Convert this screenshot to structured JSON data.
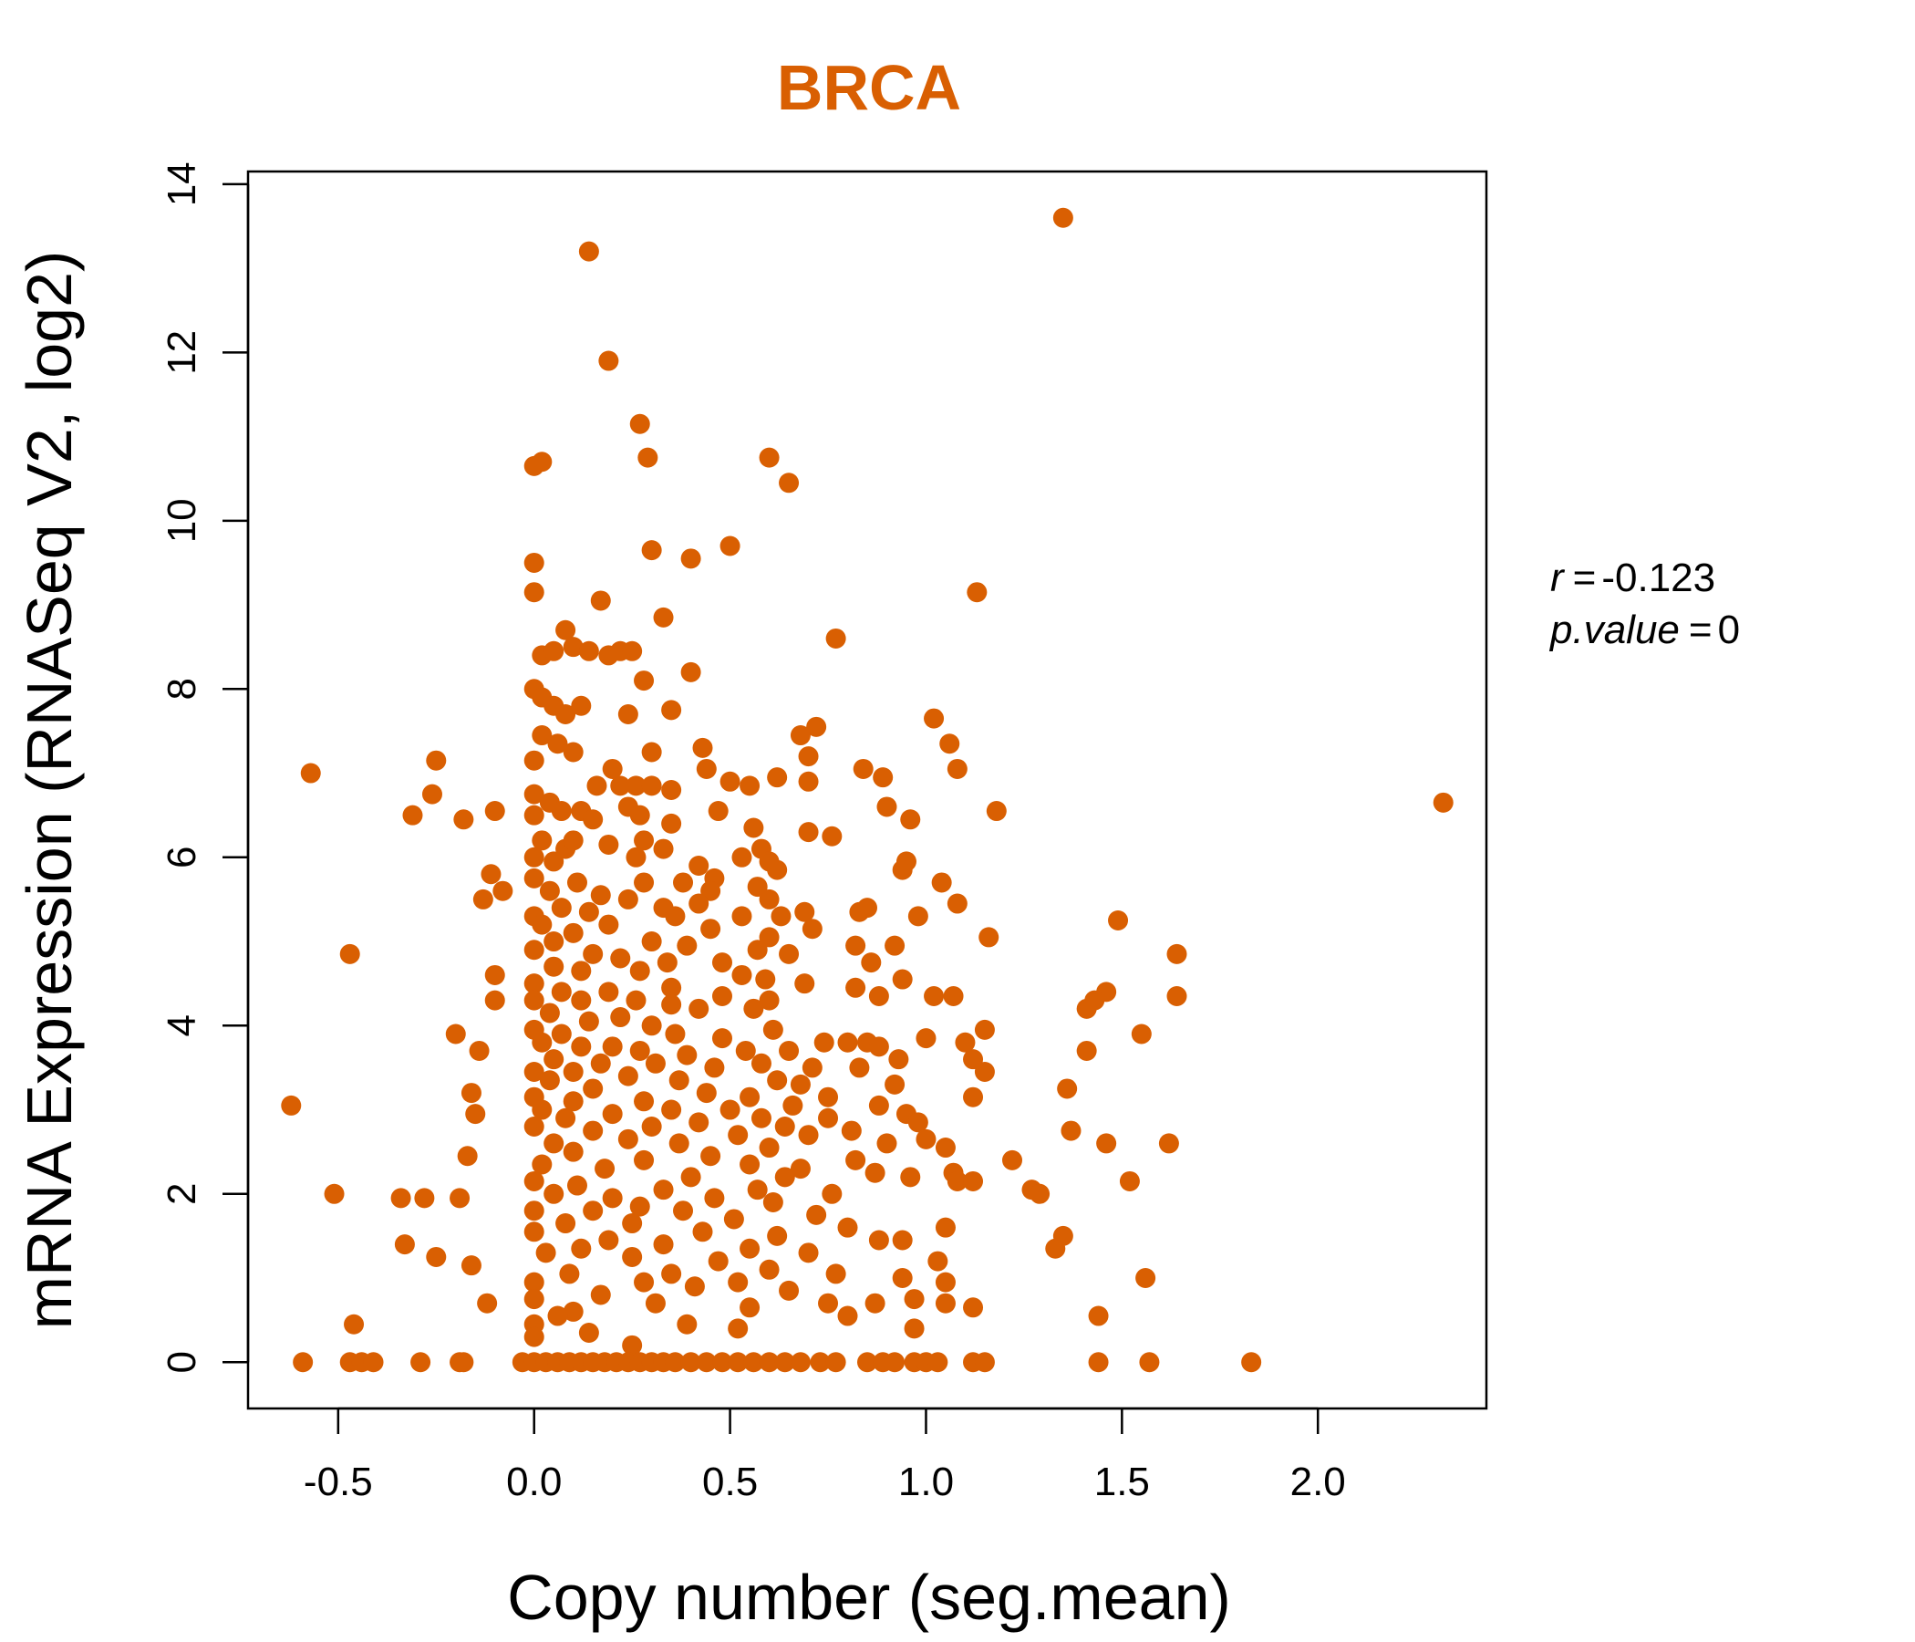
{
  "chart_data": {
    "type": "scatter",
    "title": "BRCA",
    "xlabel": "Copy number (seg.mean)",
    "ylabel": "mRNA Expression (RNASeq V2, log2)",
    "xlim": [
      -0.73,
      2.43
    ],
    "ylim": [
      -0.55,
      14.15
    ],
    "x_ticks": [
      -0.5,
      0.0,
      0.5,
      1.0,
      1.5,
      2.0
    ],
    "x_tick_labels": [
      "-0.5",
      "0.0",
      "0.5",
      "1.0",
      "1.5",
      "2.0"
    ],
    "y_ticks": [
      0,
      2,
      4,
      6,
      8,
      10,
      12,
      14
    ],
    "y_tick_labels": [
      "0",
      "2",
      "4",
      "6",
      "8",
      "10",
      "12",
      "14"
    ],
    "grid": false,
    "point_color": "#D95F02",
    "stats": {
      "r_label": "r",
      "r_value": "-0.123",
      "p_label": "p.value",
      "p_value": "0"
    },
    "points": [
      [
        1.35,
        13.6
      ],
      [
        0.14,
        13.2
      ],
      [
        0.19,
        11.9
      ],
      [
        0.27,
        11.15
      ],
      [
        0.29,
        10.75
      ],
      [
        0.0,
        10.65
      ],
      [
        0.02,
        10.7
      ],
      [
        0.6,
        10.75
      ],
      [
        0.65,
        10.45
      ],
      [
        0.3,
        9.65
      ],
      [
        0.5,
        9.7
      ],
      [
        0.4,
        9.55
      ],
      [
        0.0,
        9.5
      ],
      [
        0.0,
        9.15
      ],
      [
        1.13,
        9.15
      ],
      [
        0.17,
        9.05
      ],
      [
        0.33,
        8.85
      ],
      [
        0.08,
        8.7
      ],
      [
        0.77,
        8.6
      ],
      [
        0.02,
        8.4
      ],
      [
        0.05,
        8.45
      ],
      [
        0.1,
        8.5
      ],
      [
        0.14,
        8.45
      ],
      [
        0.19,
        8.4
      ],
      [
        0.22,
        8.45
      ],
      [
        0.25,
        8.45
      ],
      [
        0.4,
        8.2
      ],
      [
        0.28,
        8.1
      ],
      [
        0.0,
        8.0
      ],
      [
        0.02,
        7.9
      ],
      [
        0.05,
        7.8
      ],
      [
        0.08,
        7.7
      ],
      [
        0.12,
        7.8
      ],
      [
        0.24,
        7.7
      ],
      [
        0.35,
        7.75
      ],
      [
        1.02,
        7.65
      ],
      [
        0.72,
        7.55
      ],
      [
        0.68,
        7.45
      ],
      [
        0.02,
        7.45
      ],
      [
        0.06,
        7.35
      ],
      [
        0.1,
        7.25
      ],
      [
        1.06,
        7.35
      ],
      [
        0.43,
        7.3
      ],
      [
        0.3,
        7.25
      ],
      [
        0.7,
        7.2
      ],
      [
        0.2,
        7.05
      ],
      [
        0.0,
        7.15
      ],
      [
        1.08,
        7.05
      ],
      [
        -0.57,
        7.0
      ],
      [
        -0.25,
        7.15
      ],
      [
        0.44,
        7.05
      ],
      [
        0.84,
        7.05
      ],
      [
        0.89,
        6.95
      ],
      [
        0.62,
        6.95
      ],
      [
        0.5,
        6.9
      ],
      [
        0.55,
        6.85
      ],
      [
        0.7,
        6.9
      ],
      [
        0.16,
        6.85
      ],
      [
        0.22,
        6.85
      ],
      [
        0.26,
        6.85
      ],
      [
        0.3,
        6.85
      ],
      [
        0.35,
        6.8
      ],
      [
        -0.26,
        6.75
      ],
      [
        0.0,
        6.75
      ],
      [
        0.04,
        6.65
      ],
      [
        0.07,
        6.55
      ],
      [
        0.12,
        6.55
      ],
      [
        -0.1,
        6.55
      ],
      [
        0.24,
        6.6
      ],
      [
        0.27,
        6.5
      ],
      [
        0.47,
        6.55
      ],
      [
        0.9,
        6.6
      ],
      [
        0.96,
        6.45
      ],
      [
        1.18,
        6.55
      ],
      [
        -0.31,
        6.5
      ],
      [
        -0.18,
        6.45
      ],
      [
        0.0,
        6.5
      ],
      [
        0.15,
        6.45
      ],
      [
        0.35,
        6.4
      ],
      [
        0.56,
        6.35
      ],
      [
        0.7,
        6.3
      ],
      [
        0.76,
        6.25
      ],
      [
        0.02,
        6.2
      ],
      [
        0.08,
        6.1
      ],
      [
        0.1,
        6.2
      ],
      [
        0.19,
        6.15
      ],
      [
        0.28,
        6.2
      ],
      [
        0.33,
        6.1
      ],
      [
        0.58,
        6.1
      ],
      [
        0.0,
        6.0
      ],
      [
        0.05,
        5.95
      ],
      [
        0.26,
        6.0
      ],
      [
        0.53,
        6.0
      ],
      [
        0.6,
        5.95
      ],
      [
        0.95,
        5.95
      ],
      [
        0.94,
        5.85
      ],
      [
        0.42,
        5.9
      ],
      [
        0.46,
        5.75
      ],
      [
        0.62,
        5.85
      ],
      [
        -0.11,
        5.8
      ],
      [
        1.04,
        5.7
      ],
      [
        0.0,
        5.75
      ],
      [
        0.04,
        5.6
      ],
      [
        0.11,
        5.7
      ],
      [
        0.28,
        5.7
      ],
      [
        0.38,
        5.7
      ],
      [
        0.57,
        5.65
      ],
      [
        0.45,
        5.6
      ],
      [
        -0.08,
        5.6
      ],
      [
        0.17,
        5.55
      ],
      [
        0.6,
        5.5
      ],
      [
        -0.13,
        5.5
      ],
      [
        0.24,
        5.5
      ],
      [
        0.42,
        5.45
      ],
      [
        0.33,
        5.4
      ],
      [
        1.08,
        5.45
      ],
      [
        0.07,
        5.4
      ],
      [
        0.14,
        5.35
      ],
      [
        0.69,
        5.35
      ],
      [
        0.83,
        5.35
      ],
      [
        0.85,
        5.4
      ],
      [
        0.53,
        5.3
      ],
      [
        0.0,
        5.3
      ],
      [
        0.98,
        5.3
      ],
      [
        0.36,
        5.3
      ],
      [
        0.63,
        5.3
      ],
      [
        1.49,
        5.25
      ],
      [
        0.02,
        5.2
      ],
      [
        0.19,
        5.2
      ],
      [
        0.1,
        5.1
      ],
      [
        0.45,
        5.15
      ],
      [
        0.71,
        5.15
      ],
      [
        0.6,
        5.05
      ],
      [
        0.05,
        5.0
      ],
      [
        1.16,
        5.05
      ],
      [
        0.82,
        4.95
      ],
      [
        0.92,
        4.95
      ],
      [
        0.3,
        5.0
      ],
      [
        0.39,
        4.95
      ],
      [
        0.0,
        4.9
      ],
      [
        0.57,
        4.9
      ],
      [
        0.65,
        4.85
      ],
      [
        -0.47,
        4.85
      ],
      [
        1.64,
        4.85
      ],
      [
        0.15,
        4.85
      ],
      [
        0.22,
        4.8
      ],
      [
        0.34,
        4.75
      ],
      [
        0.48,
        4.75
      ],
      [
        0.86,
        4.75
      ],
      [
        0.05,
        4.7
      ],
      [
        0.12,
        4.65
      ],
      [
        0.27,
        4.65
      ],
      [
        0.53,
        4.6
      ],
      [
        -0.1,
        4.6
      ],
      [
        0.59,
        4.55
      ],
      [
        0.94,
        4.55
      ],
      [
        0.0,
        4.5
      ],
      [
        0.69,
        4.5
      ],
      [
        0.35,
        4.45
      ],
      [
        0.82,
        4.45
      ],
      [
        1.46,
        4.4
      ],
      [
        0.07,
        4.4
      ],
      [
        0.19,
        4.4
      ],
      [
        0.48,
        4.35
      ],
      [
        0.88,
        4.35
      ],
      [
        1.02,
        4.35
      ],
      [
        1.07,
        4.35
      ],
      [
        1.64,
        4.35
      ],
      [
        1.43,
        4.3
      ],
      [
        0.6,
        4.3
      ],
      [
        0.0,
        4.3
      ],
      [
        0.12,
        4.3
      ],
      [
        -0.1,
        4.3
      ],
      [
        0.26,
        4.3
      ],
      [
        0.35,
        4.25
      ],
      [
        0.42,
        4.2
      ],
      [
        1.41,
        4.2
      ],
      [
        0.56,
        4.2
      ],
      [
        0.04,
        4.15
      ],
      [
        0.22,
        4.1
      ],
      [
        0.14,
        4.05
      ],
      [
        0.3,
        4.0
      ],
      [
        0.61,
        3.95
      ],
      [
        -0.2,
        3.9
      ],
      [
        0.0,
        3.95
      ],
      [
        1.15,
        3.95
      ],
      [
        0.07,
        3.9
      ],
      [
        0.36,
        3.9
      ],
      [
        1.0,
        3.85
      ],
      [
        1.55,
        3.9
      ],
      [
        0.48,
        3.85
      ],
      [
        0.74,
        3.8
      ],
      [
        0.8,
        3.8
      ],
      [
        0.85,
        3.8
      ],
      [
        0.88,
        3.75
      ],
      [
        1.1,
        3.8
      ],
      [
        0.02,
        3.8
      ],
      [
        0.12,
        3.75
      ],
      [
        0.2,
        3.75
      ],
      [
        0.27,
        3.7
      ],
      [
        0.54,
        3.7
      ],
      [
        0.65,
        3.7
      ],
      [
        -0.14,
        3.7
      ],
      [
        1.41,
        3.7
      ],
      [
        0.39,
        3.65
      ],
      [
        0.93,
        3.6
      ],
      [
        1.12,
        3.6
      ],
      [
        0.05,
        3.6
      ],
      [
        0.17,
        3.55
      ],
      [
        0.31,
        3.55
      ],
      [
        0.58,
        3.55
      ],
      [
        0.83,
        3.5
      ],
      [
        0.46,
        3.5
      ],
      [
        0.71,
        3.5
      ],
      [
        0.0,
        3.45
      ],
      [
        0.1,
        3.45
      ],
      [
        1.15,
        3.45
      ],
      [
        0.24,
        3.4
      ],
      [
        0.37,
        3.35
      ],
      [
        0.62,
        3.35
      ],
      [
        0.04,
        3.35
      ],
      [
        0.68,
        3.3
      ],
      [
        0.92,
        3.3
      ],
      [
        1.36,
        3.25
      ],
      [
        0.15,
        3.25
      ],
      [
        0.44,
        3.2
      ],
      [
        0.55,
        3.15
      ],
      [
        0.75,
        3.15
      ],
      [
        0.0,
        3.15
      ],
      [
        -0.16,
        3.2
      ],
      [
        1.12,
        3.15
      ],
      [
        0.28,
        3.1
      ],
      [
        0.1,
        3.1
      ],
      [
        0.66,
        3.05
      ],
      [
        0.88,
        3.05
      ],
      [
        -0.62,
        3.05
      ],
      [
        0.5,
        3.0
      ],
      [
        0.35,
        3.0
      ],
      [
        0.02,
        3.0
      ],
      [
        0.2,
        2.95
      ],
      [
        0.95,
        2.95
      ],
      [
        -0.15,
        2.95
      ],
      [
        0.75,
        2.9
      ],
      [
        0.58,
        2.9
      ],
      [
        0.08,
        2.9
      ],
      [
        0.42,
        2.85
      ],
      [
        0.64,
        2.8
      ],
      [
        0.98,
        2.85
      ],
      [
        0.3,
        2.8
      ],
      [
        0.0,
        2.8
      ],
      [
        0.15,
        2.75
      ],
      [
        0.81,
        2.75
      ],
      [
        1.37,
        2.75
      ],
      [
        0.52,
        2.7
      ],
      [
        0.7,
        2.7
      ],
      [
        0.24,
        2.65
      ],
      [
        1.0,
        2.65
      ],
      [
        0.05,
        2.6
      ],
      [
        0.37,
        2.6
      ],
      [
        0.9,
        2.6
      ],
      [
        1.46,
        2.6
      ],
      [
        1.62,
        2.6
      ],
      [
        0.6,
        2.55
      ],
      [
        1.05,
        2.55
      ],
      [
        0.1,
        2.5
      ],
      [
        -0.17,
        2.45
      ],
      [
        0.45,
        2.45
      ],
      [
        0.82,
        2.4
      ],
      [
        0.28,
        2.4
      ],
      [
        1.22,
        2.4
      ],
      [
        0.02,
        2.35
      ],
      [
        0.55,
        2.35
      ],
      [
        0.68,
        2.3
      ],
      [
        0.18,
        2.3
      ],
      [
        0.87,
        2.25
      ],
      [
        1.07,
        2.25
      ],
      [
        0.4,
        2.2
      ],
      [
        0.64,
        2.2
      ],
      [
        0.96,
        2.2
      ],
      [
        1.52,
        2.15
      ],
      [
        0.0,
        2.15
      ],
      [
        0.11,
        2.1
      ],
      [
        1.08,
        2.15
      ],
      [
        1.12,
        2.15
      ],
      [
        0.33,
        2.05
      ],
      [
        0.57,
        2.05
      ],
      [
        0.76,
        2.0
      ],
      [
        1.27,
        2.05
      ],
      [
        1.29,
        2.0
      ],
      [
        -0.51,
        2.0
      ],
      [
        0.05,
        2.0
      ],
      [
        0.2,
        1.95
      ],
      [
        -0.34,
        1.95
      ],
      [
        -0.28,
        1.95
      ],
      [
        -0.19,
        1.95
      ],
      [
        0.46,
        1.95
      ],
      [
        0.61,
        1.9
      ],
      [
        0.27,
        1.85
      ],
      [
        0.0,
        1.8
      ],
      [
        0.15,
        1.8
      ],
      [
        0.38,
        1.8
      ],
      [
        0.72,
        1.75
      ],
      [
        0.51,
        1.7
      ],
      [
        0.08,
        1.65
      ],
      [
        0.25,
        1.65
      ],
      [
        0.8,
        1.6
      ],
      [
        1.05,
        1.6
      ],
      [
        0.0,
        1.55
      ],
      [
        0.43,
        1.55
      ],
      [
        0.62,
        1.5
      ],
      [
        1.35,
        1.5
      ],
      [
        0.19,
        1.45
      ],
      [
        0.88,
        1.45
      ],
      [
        0.94,
        1.45
      ],
      [
        0.33,
        1.4
      ],
      [
        -0.33,
        1.4
      ],
      [
        0.12,
        1.35
      ],
      [
        0.55,
        1.35
      ],
      [
        1.33,
        1.35
      ],
      [
        0.03,
        1.3
      ],
      [
        0.7,
        1.3
      ],
      [
        -0.25,
        1.25
      ],
      [
        0.25,
        1.25
      ],
      [
        1.03,
        1.2
      ],
      [
        0.47,
        1.2
      ],
      [
        -0.16,
        1.15
      ],
      [
        0.6,
        1.1
      ],
      [
        0.09,
        1.05
      ],
      [
        0.35,
        1.05
      ],
      [
        0.77,
        1.05
      ],
      [
        0.94,
        1.0
      ],
      [
        1.56,
        1.0
      ],
      [
        0.0,
        0.95
      ],
      [
        0.28,
        0.95
      ],
      [
        0.52,
        0.95
      ],
      [
        1.05,
        0.95
      ],
      [
        0.41,
        0.9
      ],
      [
        0.65,
        0.85
      ],
      [
        0.17,
        0.8
      ],
      [
        0.0,
        0.75
      ],
      [
        0.31,
        0.7
      ],
      [
        0.97,
        0.75
      ],
      [
        0.87,
        0.7
      ],
      [
        1.05,
        0.7
      ],
      [
        0.75,
        0.7
      ],
      [
        -0.12,
        0.7
      ],
      [
        0.55,
        0.65
      ],
      [
        1.12,
        0.65
      ],
      [
        0.1,
        0.6
      ],
      [
        0.06,
        0.55
      ],
      [
        0.8,
        0.55
      ],
      [
        1.44,
        0.55
      ],
      [
        0.0,
        0.45
      ],
      [
        0.39,
        0.45
      ],
      [
        0.97,
        0.4
      ],
      [
        -0.46,
        0.45
      ],
      [
        0.52,
        0.4
      ],
      [
        0.14,
        0.35
      ],
      [
        0.0,
        0.3
      ],
      [
        0.25,
        0.2
      ],
      [
        -0.59,
        0.0
      ],
      [
        -0.47,
        0.0
      ],
      [
        -0.44,
        0.0
      ],
      [
        -0.41,
        0.0
      ],
      [
        -0.29,
        0.0
      ],
      [
        -0.19,
        0.0
      ],
      [
        -0.18,
        0.0
      ],
      [
        -0.03,
        0.0
      ],
      [
        0.0,
        0.0
      ],
      [
        0.03,
        0.0
      ],
      [
        0.06,
        0.0
      ],
      [
        0.09,
        0.0
      ],
      [
        0.12,
        0.0
      ],
      [
        0.15,
        0.0
      ],
      [
        0.18,
        0.0
      ],
      [
        0.21,
        0.0
      ],
      [
        0.24,
        0.0
      ],
      [
        0.27,
        0.0
      ],
      [
        0.3,
        0.0
      ],
      [
        0.33,
        0.0
      ],
      [
        0.36,
        0.0
      ],
      [
        0.4,
        0.0
      ],
      [
        0.44,
        0.0
      ],
      [
        0.48,
        0.0
      ],
      [
        0.52,
        0.0
      ],
      [
        0.56,
        0.0
      ],
      [
        0.6,
        0.0
      ],
      [
        0.64,
        0.0
      ],
      [
        0.68,
        0.0
      ],
      [
        0.73,
        0.0
      ],
      [
        0.77,
        0.0
      ],
      [
        0.85,
        0.0
      ],
      [
        0.89,
        0.0
      ],
      [
        0.92,
        0.0
      ],
      [
        0.97,
        0.0
      ],
      [
        1.0,
        0.0
      ],
      [
        1.03,
        0.0
      ],
      [
        1.12,
        0.0
      ],
      [
        1.15,
        0.0
      ],
      [
        1.44,
        0.0
      ],
      [
        1.57,
        0.0
      ],
      [
        1.83,
        0.0
      ],
      [
        2.32,
        6.65
      ]
    ]
  }
}
